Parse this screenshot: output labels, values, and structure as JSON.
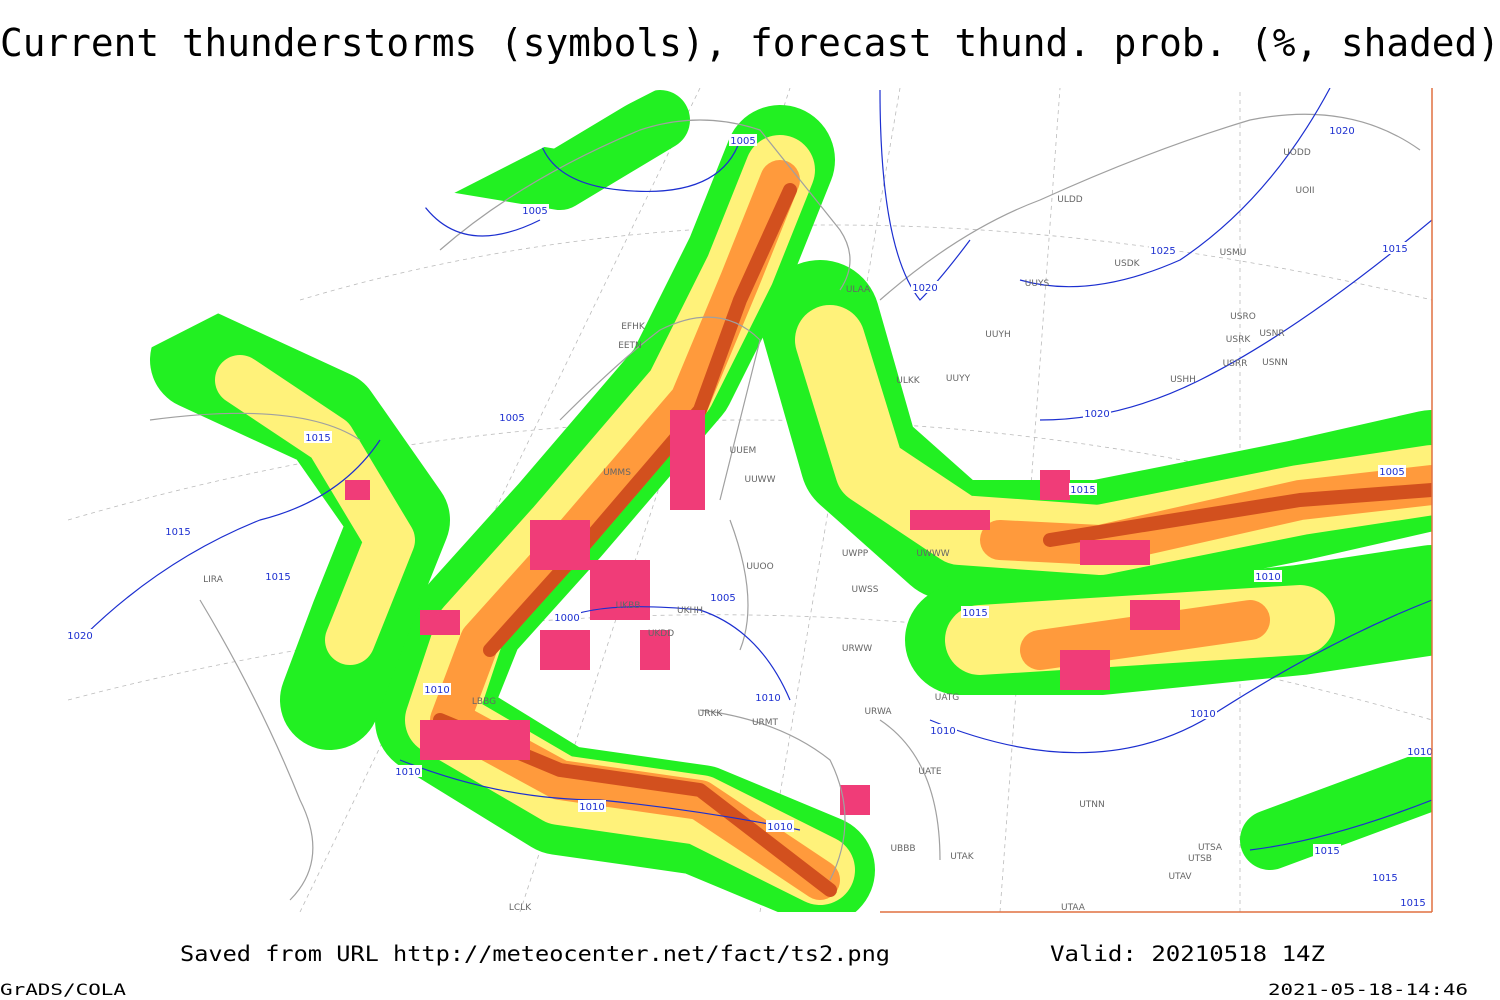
{
  "title": "Current thunderstorms (symbols), forecast thund. prob. (%, shaded)",
  "footer": {
    "saved": "Saved from URL http://meteocenter.net/fact/ts2.png",
    "valid": "Valid: 20210518 14Z",
    "software": "GrADS/COLA",
    "timestamp": "2021-05-18-14:46"
  },
  "isobar_labels": [
    "1005",
    "1005",
    "1020",
    "1025",
    "1015",
    "1020",
    "1020",
    "1005",
    "1015",
    "1015",
    "1015",
    "1020",
    "1005",
    "1000",
    "1015",
    "1010",
    "1005",
    "1015",
    "1010",
    "1010",
    "1010",
    "1010",
    "1010",
    "1010",
    "1010",
    "1015",
    "1015",
    "1015",
    "1010"
  ],
  "stations": [
    "ULDD",
    "USDK",
    "USMU",
    "UUYS",
    "ULAA",
    "UUYH",
    "USRO",
    "USRK",
    "USNR",
    "USRR",
    "USNN",
    "USHH",
    "ULKK",
    "UUYY",
    "UODD",
    "UOII",
    "UUEM",
    "UUWW",
    "UUOO",
    "UWPP",
    "UWWW",
    "UWSS",
    "URWW",
    "UATG",
    "URWA",
    "UATE",
    "UTNN",
    "UBBB",
    "UTAK",
    "UTSA",
    "UTSB",
    "UTAV",
    "UTAA",
    "LIRA",
    "LBBG",
    "URKK",
    "URMT",
    "EFHK",
    "EETN",
    "UMMS",
    "UKBB",
    "UKDD",
    "UKHH",
    "LCLK"
  ]
}
